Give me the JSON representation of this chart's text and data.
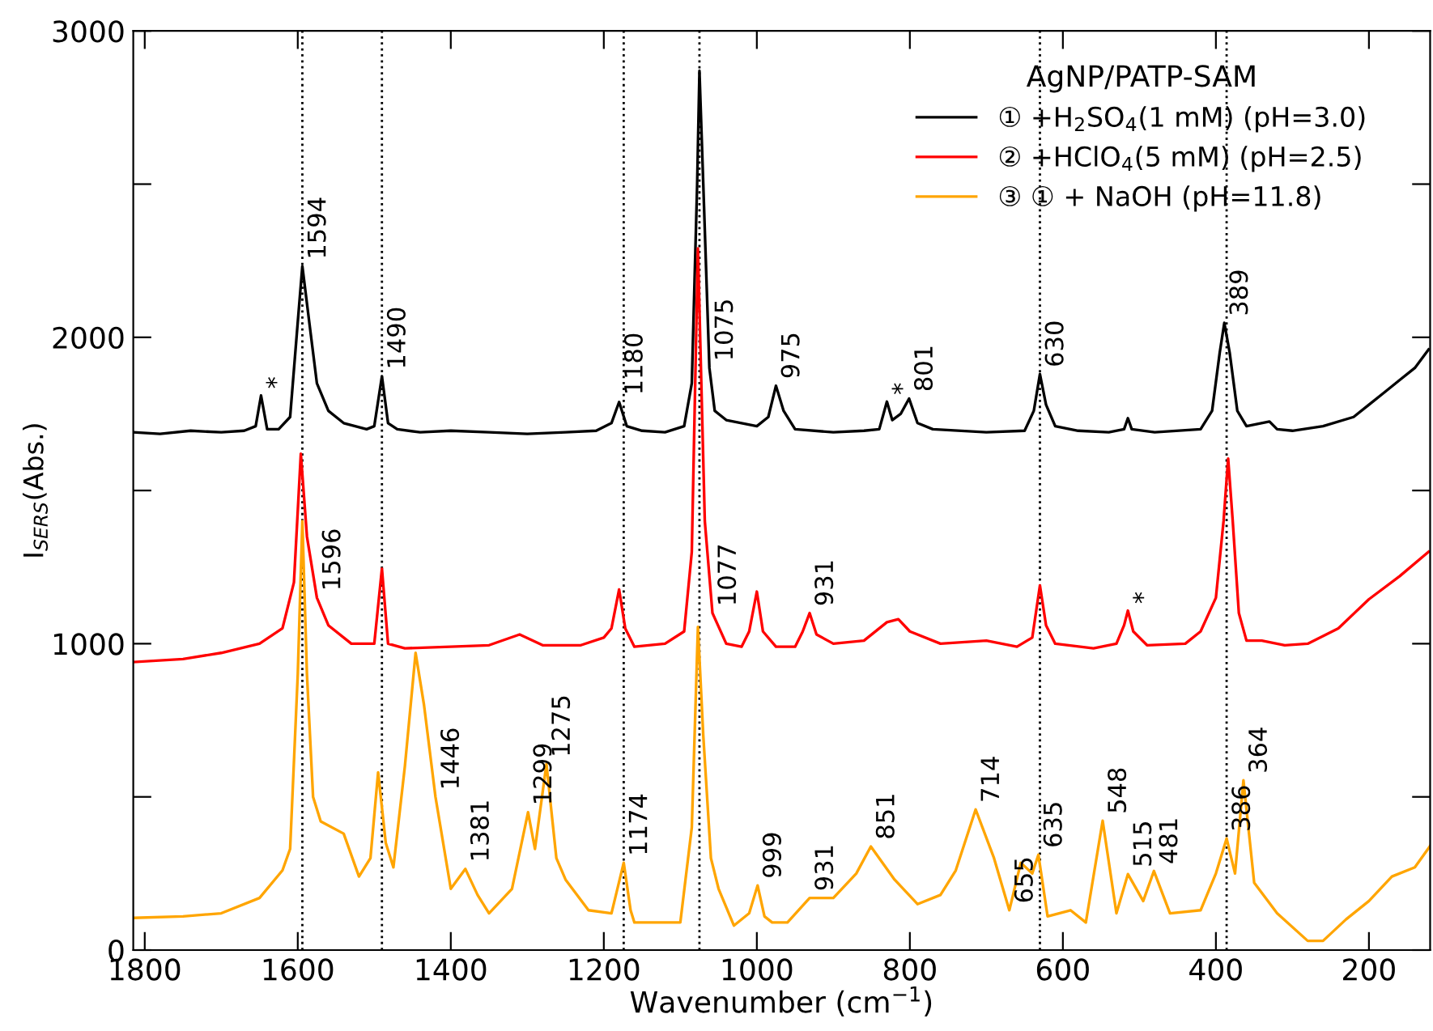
{
  "chart_data": {
    "type": "line",
    "xlabel": "Wavenumber (cm$^{−1}$)",
    "ylabel": "I$_{SERS}$(Abs.)",
    "legend_title": "AgNP/PATP-SAM",
    "legend": "top right",
    "grid": false,
    "line_style": "solid",
    "marker": "none",
    "xlim": [
      1815,
      120
    ],
    "xticks": [
      1800,
      1600,
      1400,
      1200,
      1000,
      800,
      600,
      400,
      200
    ],
    "ylim": [
      0,
      3000
    ],
    "yticks": [
      0,
      {
        "value": 500,
        "label": null
      },
      1000,
      {
        "value": 1500,
        "label": null
      },
      2000,
      {
        "value": 2500,
        "label": null
      },
      3000
    ],
    "series": [
      {
        "name": "① +H$_{2}$SO$_{4}$(1 mM) (pH=3.0)",
        "color": "#000000",
        "x": [
          1815,
          1780,
          1740,
          1700,
          1670,
          1655,
          1648,
          1640,
          1625,
          1610,
          1600,
          1594,
          1585,
          1575,
          1560,
          1540,
          1510,
          1500,
          1490,
          1482,
          1470,
          1440,
          1400,
          1350,
          1300,
          1250,
          1210,
          1190,
          1180,
          1170,
          1150,
          1120,
          1095,
          1085,
          1078,
          1075,
          1070,
          1062,
          1055,
          1040,
          1020,
          1000,
          985,
          975,
          965,
          950,
          900,
          860,
          840,
          830,
          823,
          812,
          801,
          790,
          770,
          700,
          650,
          638,
          630,
          622,
          610,
          580,
          540,
          520,
          515,
          510,
          480,
          420,
          405,
          395,
          389,
          382,
          372,
          360,
          330,
          320,
          300,
          260,
          220,
          200,
          180,
          160,
          140,
          122
        ],
        "values": [
          1690,
          1685,
          1695,
          1690,
          1695,
          1710,
          1810,
          1700,
          1700,
          1740,
          2050,
          2232,
          2050,
          1850,
          1760,
          1720,
          1700,
          1710,
          1873,
          1720,
          1700,
          1690,
          1695,
          1690,
          1685,
          1690,
          1695,
          1720,
          1789,
          1710,
          1695,
          1690,
          1710,
          1850,
          2500,
          2870,
          2500,
          1900,
          1760,
          1730,
          1720,
          1710,
          1740,
          1842,
          1760,
          1700,
          1690,
          1695,
          1700,
          1790,
          1730,
          1750,
          1800,
          1720,
          1700,
          1690,
          1695,
          1760,
          1880,
          1780,
          1710,
          1695,
          1690,
          1700,
          1736,
          1700,
          1690,
          1700,
          1760,
          1950,
          2047,
          1950,
          1760,
          1710,
          1725,
          1700,
          1695,
          1710,
          1740,
          1780,
          1820,
          1860,
          1900,
          1960
        ]
      },
      {
        "name": "② +HClO$_{4}$(5 mM) (pH=2.5)",
        "color": "#ff0000",
        "x": [
          1815,
          1750,
          1700,
          1650,
          1620,
          1605,
          1596,
          1588,
          1575,
          1560,
          1530,
          1500,
          1490,
          1482,
          1460,
          1400,
          1350,
          1310,
          1280,
          1230,
          1200,
          1190,
          1180,
          1172,
          1160,
          1120,
          1095,
          1085,
          1077,
          1068,
          1058,
          1040,
          1020,
          1010,
          1000,
          992,
          975,
          950,
          940,
          931,
          922,
          900,
          860,
          830,
          815,
          800,
          760,
          700,
          660,
          640,
          630,
          622,
          610,
          560,
          530,
          520,
          515,
          508,
          490,
          440,
          420,
          400,
          390,
          384,
          378,
          370,
          360,
          340,
          310,
          280,
          240,
          200,
          160,
          122
        ],
        "values": [
          940,
          950,
          970,
          1000,
          1050,
          1200,
          1620,
          1350,
          1150,
          1060,
          1000,
          1000,
          1245,
          1000,
          985,
          990,
          995,
          1030,
          995,
          995,
          1020,
          1050,
          1177,
          1050,
          990,
          1000,
          1040,
          1300,
          2290,
          1400,
          1100,
          1000,
          990,
          1040,
          1170,
          1040,
          990,
          990,
          1040,
          1100,
          1030,
          1000,
          1010,
          1070,
          1080,
          1040,
          1000,
          1010,
          990,
          1020,
          1190,
          1060,
          1000,
          985,
          1000,
          1060,
          1108,
          1040,
          995,
          1000,
          1040,
          1150,
          1400,
          1604,
          1400,
          1100,
          1010,
          1010,
          995,
          1000,
          1050,
          1145,
          1220,
          1300
        ]
      },
      {
        "name": "③ ① + NaOH (pH=11.8)",
        "color": "#ffa500",
        "x": [
          1815,
          1750,
          1700,
          1650,
          1620,
          1610,
          1600,
          1594,
          1588,
          1580,
          1570,
          1540,
          1520,
          1505,
          1495,
          1485,
          1475,
          1460,
          1446,
          1435,
          1420,
          1400,
          1381,
          1365,
          1350,
          1320,
          1299,
          1290,
          1275,
          1262,
          1250,
          1220,
          1190,
          1174,
          1165,
          1160,
          1100,
          1085,
          1077,
          1070,
          1060,
          1050,
          1030,
          1010,
          999,
          990,
          980,
          960,
          931,
          900,
          870,
          851,
          820,
          790,
          760,
          740,
          714,
          690,
          670,
          655,
          640,
          632,
          620,
          590,
          570,
          548,
          530,
          515,
          495,
          481,
          460,
          420,
          400,
          386,
          375,
          364,
          350,
          320,
          280,
          260,
          230,
          200,
          170,
          140,
          120
        ],
        "values": [
          105,
          110,
          120,
          170,
          260,
          330,
          900,
          1400,
          900,
          500,
          420,
          380,
          240,
          300,
          580,
          350,
          270,
          600,
          970,
          800,
          500,
          200,
          265,
          180,
          120,
          200,
          450,
          330,
          607,
          300,
          230,
          130,
          120,
          285,
          130,
          90,
          90,
          400,
          1055,
          700,
          300,
          200,
          80,
          120,
          211,
          110,
          90,
          90,
          170,
          170,
          250,
          338,
          230,
          150,
          180,
          260,
          459,
          300,
          130,
          285,
          250,
          311,
          110,
          130,
          90,
          422,
          120,
          248,
          160,
          258,
          120,
          130,
          250,
          364,
          250,
          554,
          220,
          120,
          30,
          30,
          100,
          160,
          240,
          270,
          340
        ]
      }
    ],
    "ref_lines": [
      {
        "axis": "x",
        "value": 1594,
        "color": "#000000",
        "line_style": "dotted"
      },
      {
        "axis": "x",
        "value": 1490,
        "color": "#000000",
        "line_style": "dotted"
      },
      {
        "axis": "x",
        "value": 1174,
        "color": "#000000",
        "line_style": "dotted"
      },
      {
        "axis": "x",
        "value": 1075,
        "color": "#000000",
        "line_style": "dotted"
      },
      {
        "axis": "x",
        "value": 630,
        "color": "#000000",
        "line_style": "dotted"
      },
      {
        "axis": "x",
        "value": 386,
        "color": "#000000",
        "line_style": "dotted"
      }
    ],
    "annotations": [
      {
        "text": "*",
        "x": 1648,
        "y": 1810
      },
      {
        "text": "1594",
        "x": 1594,
        "y": 2232
      },
      {
        "text": "1490",
        "x": 1490,
        "y": 1873
      },
      {
        "text": "1180",
        "x": 1180,
        "y": 1789
      },
      {
        "text": "1075",
        "x": 1062,
        "y": 1900
      },
      {
        "text": "975",
        "x": 975,
        "y": 1842
      },
      {
        "text": "*",
        "x": 830,
        "y": 1790
      },
      {
        "text": "801",
        "x": 801,
        "y": 1800
      },
      {
        "text": "630",
        "x": 630,
        "y": 1880
      },
      {
        "text": "389",
        "x": 389,
        "y": 2047
      },
      {
        "text": "1596",
        "x": 1575,
        "y": 1150
      },
      {
        "text": "1077",
        "x": 1058,
        "y": 1100
      },
      {
        "text": "931",
        "x": 931,
        "y": 1100
      },
      {
        "text": "*",
        "x": 515,
        "y": 1108
      },
      {
        "text": "1446",
        "x": 1420,
        "y": 500
      },
      {
        "text": "1381",
        "x": 1381,
        "y": 265
      },
      {
        "text": "1299",
        "x": 1299,
        "y": 450
      },
      {
        "text": "1275",
        "x": 1275,
        "y": 607
      },
      {
        "text": "1174",
        "x": 1174,
        "y": 285
      },
      {
        "text": "999",
        "x": 999,
        "y": 211
      },
      {
        "text": "931",
        "x": 931,
        "y": 170
      },
      {
        "text": "851",
        "x": 851,
        "y": 338
      },
      {
        "text": "714",
        "x": 714,
        "y": 459
      },
      {
        "text": "655",
        "x": 670,
        "y": 130
      },
      {
        "text": "635",
        "x": 632,
        "y": 311
      },
      {
        "text": "548",
        "x": 548,
        "y": 422
      },
      {
        "text": "515",
        "x": 515,
        "y": 248
      },
      {
        "text": "481",
        "x": 481,
        "y": 258
      },
      {
        "text": "386",
        "x": 386,
        "y": 364
      },
      {
        "text": "364",
        "x": 364,
        "y": 554
      }
    ]
  }
}
